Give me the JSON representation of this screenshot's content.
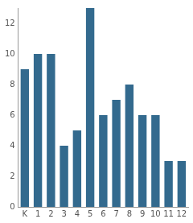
{
  "chart_data": {
    "type": "bar",
    "categories": [
      "K",
      "1",
      "2",
      "3",
      "4",
      "5",
      "6",
      "7",
      "8",
      "9",
      "10",
      "11",
      "12"
    ],
    "values": [
      9,
      10,
      10,
      4,
      5,
      13,
      6,
      7,
      8,
      6,
      6,
      3,
      3
    ],
    "color": "#336a8e",
    "ylim": [
      0,
      13
    ],
    "yticks": [
      0,
      2,
      4,
      6,
      8,
      10,
      12
    ],
    "grid": false
  }
}
